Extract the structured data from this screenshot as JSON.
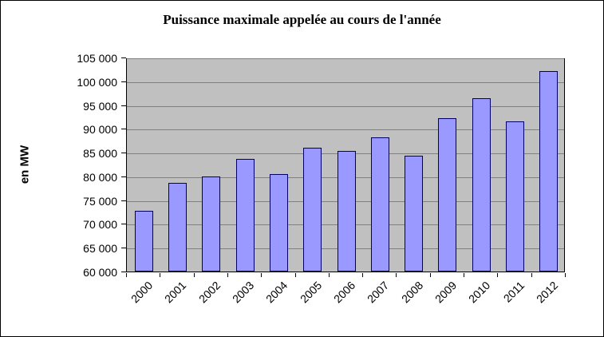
{
  "chart_data": {
    "type": "bar",
    "title": "Puissance maximale appelée au cours de l'année",
    "xlabel": "",
    "ylabel": "en MW",
    "categories": [
      "2000",
      "2001",
      "2002",
      "2003",
      "2004",
      "2005",
      "2006",
      "2007",
      "2008",
      "2009",
      "2010",
      "2011",
      "2012"
    ],
    "values": [
      72700,
      78700,
      79900,
      83700,
      80500,
      86000,
      85400,
      88200,
      84400,
      92300,
      96500,
      91600,
      102100
    ],
    "ylim": [
      60000,
      105000
    ],
    "ytick_step": 5000,
    "ytick_labels": [
      "60 000",
      "65 000",
      "70 000",
      "75 000",
      "80 000",
      "85 000",
      "90 000",
      "95 000",
      "100 000",
      "105 000"
    ],
    "grid": true,
    "legend_position": "none",
    "colors": {
      "bar_fill": "#9999FF",
      "bar_border": "#000066",
      "plot_bg": "#C0C0C0",
      "gridline": "#808080",
      "chart_bg": "#FFFFFF",
      "chart_border": "#000000"
    }
  }
}
